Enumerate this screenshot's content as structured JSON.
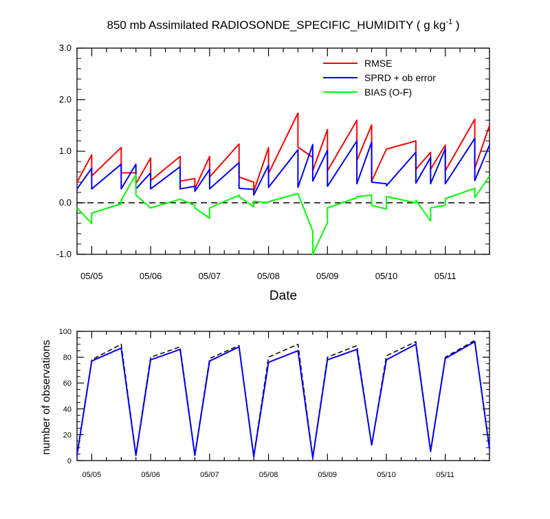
{
  "chart_data": [
    {
      "type": "line",
      "title": "850 mb Assimilated RADIOSONDE_SPECIFIC_HUMIDITY ( g kg",
      "title_superscript": "-1",
      "title_suffix": " )",
      "xlabel": "Date",
      "ylabel": "",
      "xlim": [
        0,
        7
      ],
      "ylim": [
        -1.0,
        3.0
      ],
      "x_ticks": [
        0.25,
        1.25,
        2.25,
        3.25,
        4.25,
        5.25,
        6.25
      ],
      "x_tick_labels": [
        "05/05",
        "05/06",
        "05/07",
        "05/08",
        "05/09",
        "05/10",
        "05/11"
      ],
      "y_ticks": [
        -1.0,
        0.0,
        1.0,
        2.0,
        3.0
      ],
      "y_tick_labels": [
        "-1.0",
        "0.0",
        "1.0",
        "2.0",
        "3.0"
      ],
      "reference_line": {
        "y": 0.0,
        "style": "dashed",
        "color": "#000000"
      },
      "legend": {
        "placement": "top-right"
      },
      "series": [
        {
          "name": "RMSE",
          "color": "#ff0000",
          "points": [
            [
              0,
              0.4
            ],
            [
              0.25,
              0.93
            ],
            [
              0.25,
              0.52
            ],
            [
              0.75,
              1.07
            ],
            [
              0.75,
              0.58
            ],
            [
              1.0,
              0.58
            ],
            [
              1.0,
              0.37
            ],
            [
              1.25,
              0.87
            ],
            [
              1.25,
              0.43
            ],
            [
              1.75,
              0.9
            ],
            [
              1.75,
              0.42
            ],
            [
              2.0,
              0.47
            ],
            [
              2.0,
              0.27
            ],
            [
              2.25,
              0.9
            ],
            [
              2.25,
              0.5
            ],
            [
              2.75,
              1.14
            ],
            [
              2.75,
              0.5
            ],
            [
              3.0,
              0.4
            ],
            [
              3.0,
              0.22
            ],
            [
              3.25,
              1.07
            ],
            [
              3.25,
              0.57
            ],
            [
              3.75,
              1.74
            ],
            [
              3.75,
              1.08
            ],
            [
              4.0,
              0.88
            ],
            [
              4.0,
              0.62
            ],
            [
              4.25,
              1.42
            ],
            [
              4.25,
              0.62
            ],
            [
              4.75,
              1.6
            ],
            [
              4.75,
              0.82
            ],
            [
              5.0,
              1.51
            ],
            [
              5.0,
              0.42
            ],
            [
              5.25,
              1.04
            ],
            [
              5.25,
              1.04
            ],
            [
              5.75,
              1.2
            ],
            [
              5.75,
              0.65
            ],
            [
              6.0,
              0.98
            ],
            [
              6.0,
              0.65
            ],
            [
              6.25,
              1.12
            ],
            [
              6.25,
              0.62
            ],
            [
              6.75,
              1.62
            ],
            [
              6.75,
              0.67
            ],
            [
              7.0,
              1.5
            ]
          ]
        },
        {
          "name": "SPRD + ob error",
          "color": "#0000ff",
          "points": [
            [
              0,
              0.27
            ],
            [
              0.25,
              0.67
            ],
            [
              0.25,
              0.27
            ],
            [
              0.75,
              0.75
            ],
            [
              0.75,
              0.27
            ],
            [
              1.0,
              0.75
            ],
            [
              1.0,
              0.27
            ],
            [
              1.25,
              0.58
            ],
            [
              1.25,
              0.27
            ],
            [
              1.75,
              0.7
            ],
            [
              1.75,
              0.27
            ],
            [
              2.0,
              0.32
            ],
            [
              2.0,
              0.22
            ],
            [
              2.25,
              0.65
            ],
            [
              2.25,
              0.27
            ],
            [
              2.75,
              0.78
            ],
            [
              2.75,
              0.28
            ],
            [
              3.0,
              0.26
            ],
            [
              3.0,
              0.15
            ],
            [
              3.25,
              0.73
            ],
            [
              3.25,
              0.3
            ],
            [
              3.75,
              1.03
            ],
            [
              3.75,
              0.3
            ],
            [
              4.0,
              1.13
            ],
            [
              4.0,
              0.42
            ],
            [
              4.25,
              1.02
            ],
            [
              4.25,
              0.32
            ],
            [
              4.75,
              1.2
            ],
            [
              4.75,
              0.37
            ],
            [
              5.0,
              1.18
            ],
            [
              5.0,
              0.4
            ],
            [
              5.25,
              0.37
            ],
            [
              5.25,
              0.33
            ],
            [
              5.75,
              0.98
            ],
            [
              5.75,
              0.38
            ],
            [
              6.0,
              0.88
            ],
            [
              6.0,
              0.37
            ],
            [
              6.25,
              1.05
            ],
            [
              6.25,
              0.37
            ],
            [
              6.75,
              1.25
            ],
            [
              6.75,
              0.43
            ],
            [
              7.0,
              1.12
            ]
          ]
        },
        {
          "name": "BIAS (O-F)",
          "color": "#00ff00",
          "points": [
            [
              0,
              -0.1
            ],
            [
              0.25,
              -0.4
            ],
            [
              0.25,
              -0.2
            ],
            [
              0.75,
              -0.02
            ],
            [
              0.75,
              0.05
            ],
            [
              1.0,
              0.55
            ],
            [
              1.0,
              0.15
            ],
            [
              1.25,
              -0.1
            ],
            [
              1.25,
              -0.1
            ],
            [
              1.75,
              0.07
            ],
            [
              1.75,
              0.07
            ],
            [
              2.0,
              -0.05
            ],
            [
              2.0,
              -0.1
            ],
            [
              2.25,
              -0.3
            ],
            [
              2.25,
              -0.1
            ],
            [
              2.75,
              0.15
            ],
            [
              2.75,
              0.12
            ],
            [
              3.0,
              -0.08
            ],
            [
              3.0,
              0.03
            ],
            [
              3.25,
              0.0
            ],
            [
              3.25,
              0.02
            ],
            [
              3.75,
              0.18
            ],
            [
              3.75,
              0.18
            ],
            [
              4.0,
              -0.55
            ],
            [
              4.0,
              -1.0
            ],
            [
              4.25,
              -0.38
            ],
            [
              4.25,
              -0.1
            ],
            [
              4.75,
              0.1
            ],
            [
              4.75,
              0.12
            ],
            [
              5.0,
              0.15
            ],
            [
              5.0,
              -0.05
            ],
            [
              5.25,
              -0.12
            ],
            [
              5.25,
              0.12
            ],
            [
              5.75,
              0.0
            ],
            [
              5.75,
              0.05
            ],
            [
              6.0,
              -0.35
            ],
            [
              6.0,
              -0.1
            ],
            [
              6.25,
              -0.05
            ],
            [
              6.25,
              0.08
            ],
            [
              6.75,
              0.28
            ],
            [
              6.75,
              0.1
            ],
            [
              7.0,
              0.52
            ]
          ]
        }
      ]
    },
    {
      "type": "line",
      "title": "",
      "xlabel": "",
      "ylabel": "number of observations",
      "xlim": [
        0,
        7
      ],
      "ylim": [
        0,
        100
      ],
      "x_ticks": [
        0.25,
        1.25,
        2.25,
        3.25,
        4.25,
        5.25,
        6.25
      ],
      "x_tick_labels": [
        "05/05",
        "05/06",
        "05/07",
        "05/08",
        "05/09",
        "05/10",
        "05/11"
      ],
      "y_ticks": [
        0,
        20,
        40,
        60,
        80,
        100
      ],
      "y_tick_labels": [
        "0",
        "20",
        "40",
        "60",
        "80",
        "100"
      ],
      "series": [
        {
          "color": "#000000",
          "style": "dashed",
          "points": [
            [
              0,
              5
            ],
            [
              0.25,
              78
            ],
            [
              0.75,
              90
            ],
            [
              1.0,
              5
            ],
            [
              1.25,
              80
            ],
            [
              1.75,
              88
            ],
            [
              2.0,
              5
            ],
            [
              2.25,
              79
            ],
            [
              2.75,
              89
            ],
            [
              3.0,
              4
            ],
            [
              3.25,
              80
            ],
            [
              3.75,
              90
            ],
            [
              4.0,
              3
            ],
            [
              4.25,
              80
            ],
            [
              4.75,
              89
            ],
            [
              5.0,
              12
            ],
            [
              5.25,
              81
            ],
            [
              5.75,
              92
            ],
            [
              6.0,
              8
            ],
            [
              6.25,
              80
            ],
            [
              6.75,
              93
            ],
            [
              7.0,
              10
            ]
          ]
        },
        {
          "color": "#0000ff",
          "style": "solid",
          "points": [
            [
              0,
              4
            ],
            [
              0.25,
              77
            ],
            [
              0.75,
              87
            ],
            [
              1.0,
              4
            ],
            [
              1.25,
              78
            ],
            [
              1.75,
              86
            ],
            [
              2.0,
              4
            ],
            [
              2.25,
              77
            ],
            [
              2.75,
              88
            ],
            [
              3.0,
              3
            ],
            [
              3.25,
              76
            ],
            [
              3.75,
              85
            ],
            [
              4.0,
              2
            ],
            [
              4.25,
              78
            ],
            [
              4.75,
              86
            ],
            [
              5.0,
              12
            ],
            [
              5.25,
              78
            ],
            [
              5.75,
              90
            ],
            [
              6.0,
              7
            ],
            [
              6.25,
              79
            ],
            [
              6.75,
              92
            ],
            [
              7.0,
              9
            ]
          ]
        }
      ]
    }
  ]
}
